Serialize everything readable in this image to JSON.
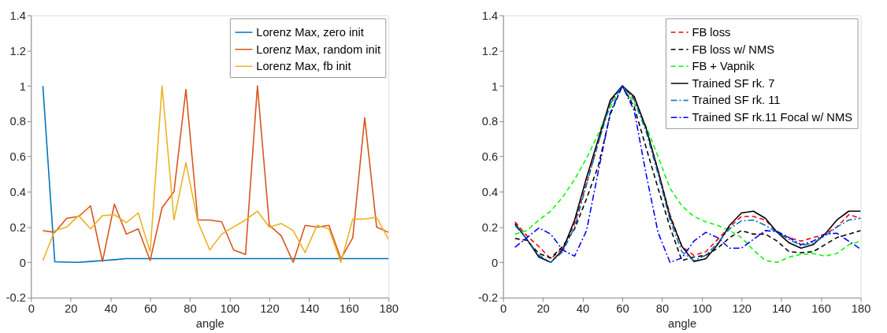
{
  "chart_data": [
    {
      "type": "line",
      "xlabel": "angle",
      "x": [
        6,
        12,
        18,
        24,
        30,
        36,
        42,
        48,
        54,
        60,
        66,
        72,
        78,
        84,
        90,
        96,
        102,
        108,
        114,
        120,
        126,
        132,
        138,
        144,
        150,
        156,
        162,
        168,
        174,
        180
      ],
      "xlim": [
        0,
        180
      ],
      "xticks": [
        0,
        20,
        40,
        60,
        80,
        100,
        120,
        140,
        160,
        180
      ],
      "ylim": [
        -0.2,
        1.4
      ],
      "yticks": [
        -0.2,
        0,
        0.2,
        0.4,
        0.6,
        0.8,
        1,
        1.2,
        1.4
      ],
      "grid": false,
      "legend": "top right",
      "line_style": "solid",
      "series": [
        {
          "name": "Lorenz Max, zero init",
          "color": "#0072bd",
          "values": [
            1,
            0.003,
            0.001,
            0,
            0.005,
            0.01,
            0.015,
            0.021,
            0.021,
            0.021,
            0.021,
            0.021,
            0.021,
            0.021,
            0.021,
            0.021,
            0.021,
            0.021,
            0.021,
            0.021,
            0.021,
            0.021,
            0.021,
            0.021,
            0.021,
            0.021,
            0.021,
            0.021,
            0.021,
            0.021
          ]
        },
        {
          "name": "Lorenz Max, random init",
          "color": "#d95319",
          "values": [
            0.18,
            0.17,
            0.25,
            0.26,
            0.32,
            0.005,
            0.33,
            0.16,
            0.19,
            0.01,
            0.31,
            0.4,
            0.98,
            0.24,
            0.24,
            0.23,
            0.07,
            0.045,
            1,
            0.21,
            0.15,
            0,
            0.21,
            0.2,
            0.21,
            0.02,
            0.14,
            0.82,
            0.2,
            0.17
          ]
        },
        {
          "name": "Lorenz Max, fb init",
          "color": "#edb120",
          "values": [
            0.01,
            0.18,
            0.2,
            0.265,
            0.19,
            0.265,
            0.27,
            0.225,
            0.28,
            0.06,
            1,
            0.24,
            0.565,
            0.23,
            0.07,
            0.16,
            0.2,
            0.24,
            0.29,
            0.2,
            0.22,
            0.18,
            0.055,
            0.21,
            0.19,
            0,
            0.245,
            0.245,
            0.255,
            0.13
          ]
        }
      ]
    },
    {
      "type": "line",
      "xlabel": "angle",
      "x": [
        6,
        12,
        18,
        24,
        30,
        36,
        42,
        48,
        54,
        60,
        66,
        72,
        78,
        84,
        90,
        96,
        102,
        108,
        114,
        120,
        126,
        132,
        138,
        144,
        150,
        156,
        162,
        168,
        174,
        180
      ],
      "xlim": [
        0,
        180
      ],
      "xticks": [
        0,
        20,
        40,
        60,
        80,
        100,
        120,
        140,
        160,
        180
      ],
      "ylim": [
        -0.2,
        1.4
      ],
      "yticks": [
        -0.2,
        0,
        0.2,
        0.4,
        0.6,
        0.8,
        1,
        1.2,
        1.4
      ],
      "grid": false,
      "legend": "top right",
      "series": [
        {
          "name": "FB loss",
          "color": "#ff0000",
          "line_style": "dashed",
          "values": [
            0.23,
            0.15,
            0.09,
            0.02,
            0.08,
            0.22,
            0.45,
            0.68,
            0.91,
            1,
            0.93,
            0.76,
            0.52,
            0.27,
            0.09,
            0.04,
            0.06,
            0.13,
            0.2,
            0.26,
            0.26,
            0.24,
            0.17,
            0.14,
            0.12,
            0.14,
            0.16,
            0.2,
            0.27,
            0.25
          ]
        },
        {
          "name": "FB loss w/ NMS",
          "color": "#000000",
          "line_style": "dashed",
          "values": [
            0.135,
            0.125,
            0.05,
            0.025,
            0.09,
            0.19,
            0.36,
            0.55,
            0.84,
            1,
            0.88,
            0.65,
            0.42,
            0.2,
            0.01,
            0.03,
            0.04,
            0.08,
            0.14,
            0.18,
            0.16,
            0.16,
            0.12,
            0.06,
            0.055,
            0.06,
            0.1,
            0.14,
            0.16,
            0.18
          ]
        },
        {
          "name": "FB + Vapnik",
          "color": "#00ff00",
          "line_style": "dashed",
          "values": [
            0.16,
            0.18,
            0.24,
            0.29,
            0.37,
            0.47,
            0.59,
            0.73,
            0.88,
            1,
            0.9,
            0.77,
            0.6,
            0.42,
            0.32,
            0.26,
            0.23,
            0.21,
            0.18,
            0.14,
            0.07,
            0.01,
            0,
            0.03,
            0.045,
            0.05,
            0.035,
            0.05,
            0.1,
            0.12
          ]
        },
        {
          "name": "Trained SF rk. 7",
          "color": "#000000",
          "line_style": "solid",
          "values": [
            0.22,
            0.13,
            0.03,
            0,
            0.07,
            0.24,
            0.48,
            0.7,
            0.92,
            1,
            0.94,
            0.76,
            0.52,
            0.26,
            0.09,
            0.005,
            0.02,
            0.1,
            0.21,
            0.28,
            0.29,
            0.25,
            0.17,
            0.11,
            0.08,
            0.1,
            0.16,
            0.24,
            0.29,
            0.29
          ]
        },
        {
          "name": "Trained SF rk. 11",
          "color": "#0072bd",
          "line_style": "dashdot",
          "values": [
            0.21,
            0.13,
            0.04,
            0,
            0.06,
            0.2,
            0.44,
            0.68,
            0.9,
            1,
            0.92,
            0.74,
            0.5,
            0.24,
            0.06,
            0.01,
            0.04,
            0.11,
            0.19,
            0.235,
            0.24,
            0.21,
            0.17,
            0.13,
            0.095,
            0.11,
            0.15,
            0.2,
            0.24,
            0.25
          ]
        },
        {
          "name": "Trained SF rk.11 Focal w/ NMS",
          "color": "#0000ff",
          "line_style": "dashdot",
          "values": [
            0.085,
            0.14,
            0.195,
            0.16,
            0.07,
            0.035,
            0.18,
            0.52,
            0.85,
            1,
            0.86,
            0.5,
            0.17,
            0,
            0.025,
            0.12,
            0.17,
            0.14,
            0.08,
            0.08,
            0.13,
            0.18,
            0.175,
            0.14,
            0.1,
            0.12,
            0.16,
            0.165,
            0.12,
            0.075
          ]
        }
      ]
    }
  ]
}
